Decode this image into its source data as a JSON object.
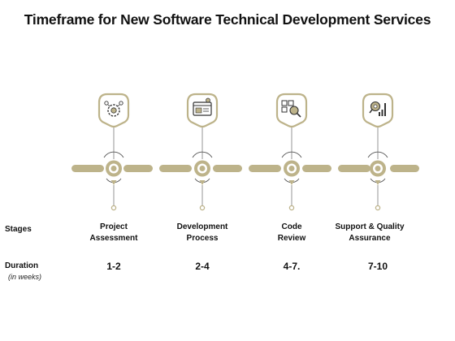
{
  "title": "Timeframe for New Software Technical Development Services",
  "row_labels": {
    "stages": "Stages",
    "duration": "Duration",
    "duration_unit": "(in weeks)"
  },
  "stages": [
    {
      "label_line1": "Project",
      "label_line2": "Assessment",
      "duration": "1-2",
      "icon": "gear-settings-icon"
    },
    {
      "label_line1": "Development",
      "label_line2": "Process",
      "duration": "2-4",
      "icon": "browser-window-icon"
    },
    {
      "label_line1": "Code",
      "label_line2": "Review",
      "duration": "4-7.",
      "icon": "qr-code-magnifier-icon"
    },
    {
      "label_line1": "Support & Quality",
      "label_line2": "Assurance",
      "duration": "7-10",
      "icon": "quality-search-icon"
    }
  ],
  "colors": {
    "accent": "#BDB38A",
    "accent_dark": "#8C8460",
    "line": "#7A7A7A",
    "text": "#111111"
  }
}
